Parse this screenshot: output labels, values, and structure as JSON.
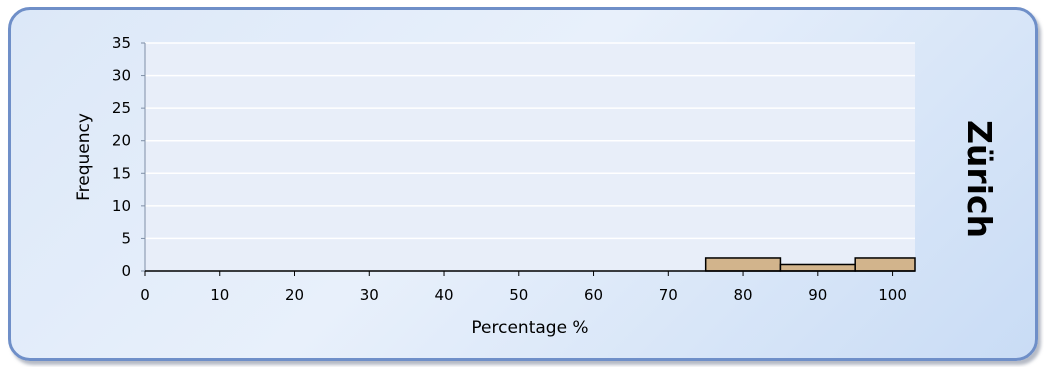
{
  "chart_data": {
    "type": "bar",
    "title": "Zürich",
    "xlabel": "Percentage %",
    "ylabel": "Frequency",
    "xlim": [
      0,
      103
    ],
    "ylim": [
      0,
      35
    ],
    "x_ticks": [
      0,
      10,
      20,
      30,
      40,
      50,
      60,
      70,
      80,
      90,
      100
    ],
    "y_ticks": [
      0,
      5,
      10,
      15,
      20,
      25,
      30,
      35
    ],
    "bins": [
      {
        "start": 75,
        "end": 85,
        "value": 2
      },
      {
        "start": 85,
        "end": 95,
        "value": 1
      },
      {
        "start": 95,
        "end": 103,
        "value": 2
      }
    ],
    "grid": true,
    "legend": "none"
  },
  "colors": {
    "bar_fill": "#d2b48c",
    "bar_stroke": "#000000",
    "plot_bg": "#e8eef9",
    "gridline": "#ffffff"
  }
}
